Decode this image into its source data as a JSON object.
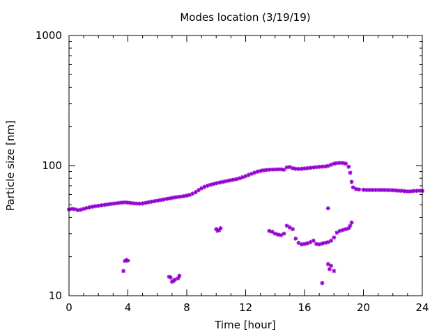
{
  "chart_data": {
    "type": "scatter",
    "title": "Modes location (3/19/19)",
    "xlabel": "Time [hour]",
    "ylabel": "Particle size [nm]",
    "xlim": [
      0,
      24
    ],
    "ylim": [
      10,
      1000
    ],
    "yscale": "log",
    "grid": false,
    "marker": "asterisk",
    "color": "#9400d3",
    "xticks": [
      0,
      4,
      8,
      12,
      16,
      20,
      24
    ],
    "yticks": [
      10,
      100,
      1000
    ],
    "series": [
      {
        "points": [
          [
            0.0,
            46
          ],
          [
            0.2,
            46.5
          ],
          [
            0.4,
            46.2
          ],
          [
            0.6,
            45.5
          ],
          [
            0.8,
            45.8
          ],
          [
            1.0,
            46.5
          ],
          [
            1.2,
            47.2
          ],
          [
            1.4,
            47.8
          ],
          [
            1.6,
            48.3
          ],
          [
            1.8,
            48.8
          ],
          [
            2.0,
            49.1
          ],
          [
            2.2,
            49.5
          ],
          [
            2.4,
            49.9
          ],
          [
            2.6,
            50.3
          ],
          [
            2.8,
            50.7
          ],
          [
            3.0,
            51.0
          ],
          [
            3.2,
            51.3
          ],
          [
            3.4,
            51.7
          ],
          [
            3.6,
            52.0
          ],
          [
            3.8,
            52.2
          ],
          [
            4.0,
            52.0
          ],
          [
            4.2,
            51.6
          ],
          [
            4.4,
            51.3
          ],
          [
            4.6,
            51.1
          ],
          [
            4.8,
            51.0
          ],
          [
            5.0,
            51.2
          ],
          [
            5.2,
            51.7
          ],
          [
            5.4,
            52.3
          ],
          [
            5.6,
            52.8
          ],
          [
            5.8,
            53.3
          ],
          [
            6.0,
            53.8
          ],
          [
            6.2,
            54.3
          ],
          [
            6.4,
            54.8
          ],
          [
            6.6,
            55.4
          ],
          [
            6.8,
            55.9
          ],
          [
            7.0,
            56.5
          ],
          [
            7.2,
            57.0
          ],
          [
            7.4,
            57.4
          ],
          [
            7.6,
            57.8
          ],
          [
            7.8,
            58.2
          ],
          [
            8.0,
            58.8
          ],
          [
            8.2,
            59.6
          ],
          [
            8.4,
            60.8
          ],
          [
            8.6,
            62.5
          ],
          [
            8.8,
            64.8
          ],
          [
            9.0,
            67.0
          ],
          [
            9.2,
            68.6
          ],
          [
            9.4,
            70.0
          ],
          [
            9.6,
            71.2
          ],
          [
            9.8,
            72.2
          ],
          [
            10.0,
            73.1
          ],
          [
            10.2,
            74.0
          ],
          [
            10.4,
            74.8
          ],
          [
            10.6,
            75.6
          ],
          [
            10.8,
            76.5
          ],
          [
            11.0,
            77.3
          ],
          [
            11.2,
            78.0
          ],
          [
            11.4,
            78.9
          ],
          [
            11.6,
            80.0
          ],
          [
            11.8,
            81.5
          ],
          [
            12.0,
            83.0
          ],
          [
            12.2,
            84.8
          ],
          [
            12.4,
            86.5
          ],
          [
            12.6,
            88.2
          ],
          [
            12.8,
            89.8
          ],
          [
            13.0,
            91.0
          ],
          [
            13.2,
            92.0
          ],
          [
            13.4,
            92.6
          ],
          [
            13.6,
            93.0
          ],
          [
            13.8,
            93.2
          ],
          [
            14.0,
            93.4
          ],
          [
            14.2,
            93.6
          ],
          [
            14.4,
            93.6
          ],
          [
            14.6,
            93.0
          ],
          [
            14.8,
            97.0
          ],
          [
            15.0,
            97.5
          ],
          [
            15.2,
            95.5
          ],
          [
            15.4,
            94.5
          ],
          [
            15.6,
            94.2
          ],
          [
            15.8,
            94.5
          ],
          [
            16.0,
            95.0
          ],
          [
            16.2,
            95.6
          ],
          [
            16.4,
            96.2
          ],
          [
            16.6,
            96.8
          ],
          [
            16.8,
            97.3
          ],
          [
            17.0,
            97.8
          ],
          [
            17.2,
            98.2
          ],
          [
            17.4,
            98.5
          ],
          [
            17.6,
            99.5
          ],
          [
            17.8,
            101.5
          ],
          [
            18.0,
            103.5
          ],
          [
            18.2,
            104.5
          ],
          [
            18.4,
            105.0
          ],
          [
            18.6,
            104.8
          ],
          [
            18.8,
            103.5
          ],
          [
            19.0,
            98.0
          ],
          [
            19.1,
            88.0
          ],
          [
            19.2,
            75.0
          ],
          [
            19.3,
            68.0
          ],
          [
            19.5,
            66.0
          ],
          [
            19.7,
            65.5
          ],
          [
            20.0,
            65.2
          ],
          [
            20.2,
            65.0
          ],
          [
            20.4,
            65.0
          ],
          [
            20.6,
            65.0
          ],
          [
            20.8,
            65.0
          ],
          [
            21.0,
            65.0
          ],
          [
            21.2,
            65.0
          ],
          [
            21.4,
            65.0
          ],
          [
            21.6,
            64.9
          ],
          [
            21.8,
            64.8
          ],
          [
            22.0,
            64.7
          ],
          [
            22.2,
            64.5
          ],
          [
            22.4,
            64.2
          ],
          [
            22.6,
            64.0
          ],
          [
            22.8,
            63.6
          ],
          [
            23.0,
            63.3
          ],
          [
            23.2,
            63.4
          ],
          [
            23.4,
            63.8
          ],
          [
            23.6,
            64.0
          ],
          [
            23.8,
            64.2
          ],
          [
            24.0,
            64.0
          ],
          [
            3.7,
            15.5
          ],
          [
            3.8,
            18.5
          ],
          [
            3.9,
            18.8
          ],
          [
            4.0,
            18.6
          ],
          [
            6.8,
            14.0
          ],
          [
            6.9,
            13.8
          ],
          [
            7.0,
            12.8
          ],
          [
            7.1,
            13.0
          ],
          [
            7.2,
            13.3
          ],
          [
            7.4,
            13.6
          ],
          [
            7.5,
            14.2
          ],
          [
            10.0,
            32.5
          ],
          [
            10.1,
            31.5
          ],
          [
            10.2,
            32.0
          ],
          [
            10.3,
            33.0
          ],
          [
            13.6,
            31.5
          ],
          [
            13.8,
            31.0
          ],
          [
            14.0,
            30.0
          ],
          [
            14.2,
            29.5
          ],
          [
            14.4,
            29.2
          ],
          [
            14.6,
            30.0
          ],
          [
            14.8,
            34.5
          ],
          [
            15.0,
            33.5
          ],
          [
            15.2,
            32.5
          ],
          [
            15.4,
            27.5
          ],
          [
            15.6,
            25.5
          ],
          [
            15.8,
            24.8
          ],
          [
            16.0,
            25.0
          ],
          [
            16.2,
            25.3
          ],
          [
            16.4,
            25.8
          ],
          [
            16.6,
            26.5
          ],
          [
            16.8,
            25.0
          ],
          [
            17.0,
            24.8
          ],
          [
            17.2,
            25.2
          ],
          [
            17.4,
            25.5
          ],
          [
            17.6,
            25.8
          ],
          [
            17.8,
            26.5
          ],
          [
            18.0,
            28.0
          ],
          [
            18.2,
            30.5
          ],
          [
            18.4,
            31.5
          ],
          [
            18.6,
            32.0
          ],
          [
            18.8,
            32.5
          ],
          [
            19.0,
            33.0
          ],
          [
            19.1,
            34.5
          ],
          [
            19.2,
            36.5
          ],
          [
            17.2,
            12.5
          ],
          [
            17.6,
            47.0
          ],
          [
            17.6,
            17.5
          ],
          [
            17.8,
            17.0
          ],
          [
            18.0,
            15.5
          ],
          [
            17.7,
            16.0
          ]
        ]
      }
    ]
  }
}
